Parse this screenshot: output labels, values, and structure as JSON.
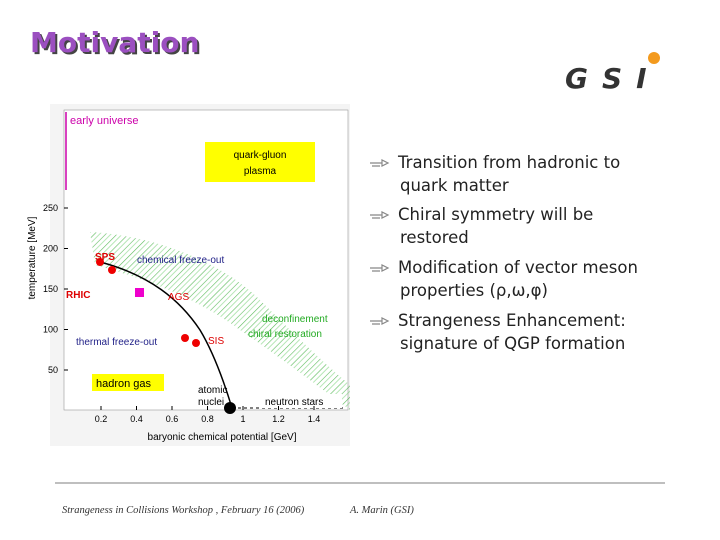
{
  "slide": {
    "title": "Motivation",
    "logo": "GSI",
    "bullets": [
      {
        "lines": [
          "Transition from hadronic to",
          "quark matter"
        ]
      },
      {
        "lines": [
          "Chiral symmetry will be",
          "restored"
        ]
      },
      {
        "lines": [
          "Modification of vector meson",
          "properties (ρ,ω,φ)"
        ]
      },
      {
        "lines": [
          "Strangeness Enhancement:",
          "signature of QGP formation"
        ]
      }
    ],
    "figure": {
      "y_label": "temperature [MeV]",
      "x_label": "baryonic chemical potential [GeV]",
      "y_ticks": [
        "250",
        "200",
        "150",
        "100",
        "50"
      ],
      "x_ticks": [
        "0.2",
        "0.4",
        "0.6",
        "0.8",
        "1",
        "1.2",
        "1.4"
      ],
      "labels": {
        "early_universe": "early universe",
        "qgp_1": "quark-gluon",
        "qgp_2": "plasma",
        "sps": "SPS",
        "rhic": "RHIC",
        "ags": "AGS",
        "sis": "SIS",
        "chemical": "chemical freeze-out",
        "thermal": "thermal freeze-out",
        "deconf": "deconfinement",
        "chiral": "chiral restoration",
        "hadron_gas": "hadron gas",
        "nuclei_1": "atomic",
        "nuclei_2": "nuclei",
        "neutron": "neutron stars"
      }
    },
    "footer": {
      "left": "Strangeness in Collisions Workshop , February 16 (2006)",
      "right": "A. Marin (GSI)"
    }
  }
}
